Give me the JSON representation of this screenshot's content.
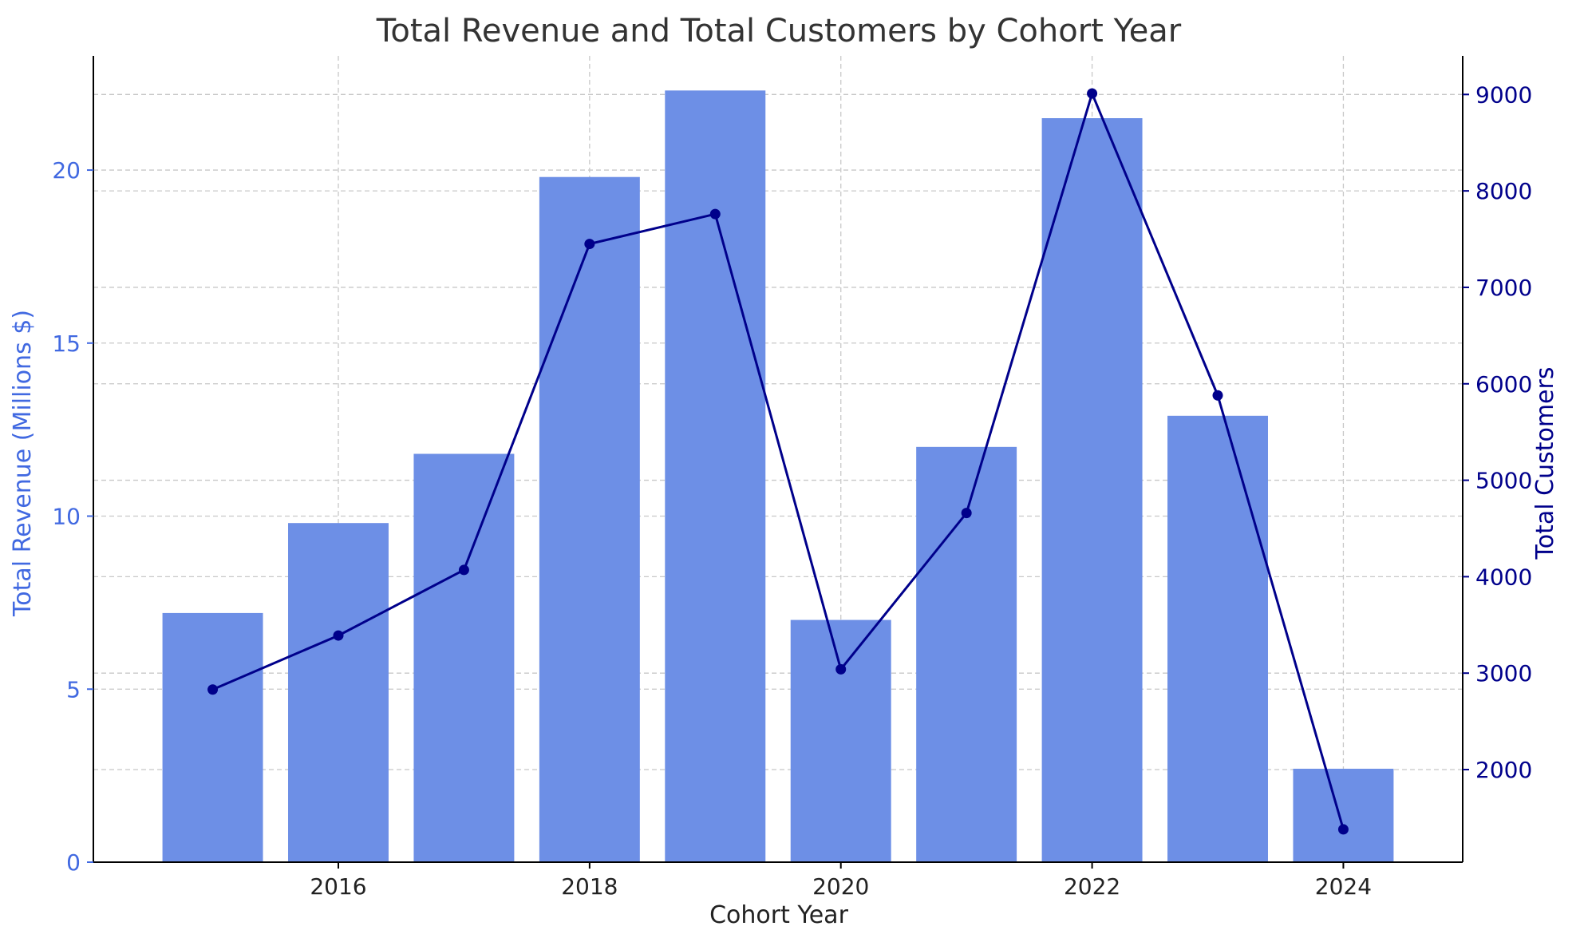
{
  "chart_data": {
    "type": "bar",
    "title": "Total Revenue and Total Customers by Cohort Year",
    "xlabel": "Cohort Year",
    "ylabel": "Total Revenue (Millions $)",
    "y2label": "Total Customers",
    "x": [
      2015,
      2016,
      2017,
      2018,
      2019,
      2020,
      2021,
      2022,
      2023,
      2024
    ],
    "xlim": [
      2014.05,
      2024.95
    ],
    "xticks": [
      2016,
      2018,
      2020,
      2022,
      2024
    ],
    "ylim": [
      0,
      23.3
    ],
    "yticks": [
      0,
      5,
      10,
      15,
      20
    ],
    "y2lim": [
      1040,
      9400
    ],
    "y2ticks": [
      2000,
      3000,
      4000,
      5000,
      6000,
      7000,
      8000,
      9000
    ],
    "grid": true,
    "series": [
      {
        "name": "Total Revenue",
        "type": "bar",
        "axis": "left",
        "color": "#6d8fe6",
        "values": [
          7.2,
          9.8,
          11.8,
          19.8,
          22.3,
          7.0,
          12.0,
          21.5,
          12.9,
          2.7
        ]
      },
      {
        "name": "Total Customers",
        "type": "line",
        "axis": "right",
        "color": "#00008b",
        "values": [
          2830,
          3390,
          4070,
          7450,
          7760,
          3040,
          4660,
          9010,
          5880,
          1380
        ]
      }
    ],
    "colors": {
      "left_axis": "#4169e1",
      "right_axis": "#00008b",
      "bar": "#6d8fe6",
      "line": "#00008b"
    }
  }
}
